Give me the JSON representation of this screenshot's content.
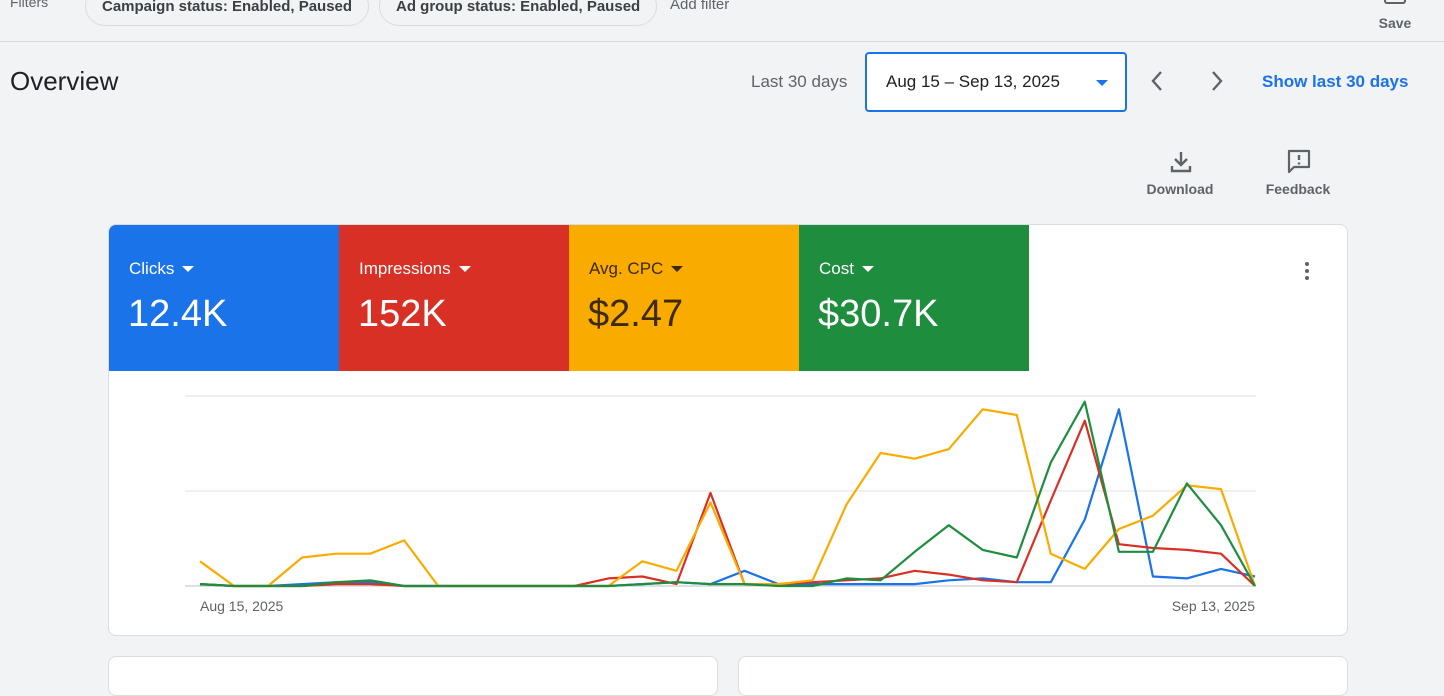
{
  "filters": {
    "label": "Filters",
    "chips": [
      "Campaign status: Enabled, Paused",
      "Ad group status: Enabled, Paused"
    ],
    "add_filter": "Add filter",
    "save_label": "Save"
  },
  "header": {
    "title": "Overview",
    "range_label": "Last 30 days",
    "date_range": "Aug 15 – Sep 13, 2025",
    "show_last": "Show last 30 days"
  },
  "tools": {
    "download_label": "Download",
    "feedback_label": "Feedback"
  },
  "metrics": [
    {
      "label": "Clicks",
      "value": "12.4K",
      "color": "#1a73e8"
    },
    {
      "label": "Impressions",
      "value": "152K",
      "color": "#d93025"
    },
    {
      "label": "Avg. CPC",
      "value": "$2.47",
      "color": "#f9ab00"
    },
    {
      "label": "Cost",
      "value": "$30.7K",
      "color": "#1e8e3e"
    }
  ],
  "chart_data": {
    "type": "line",
    "x_start_label": "Aug 15, 2025",
    "x_end_label": "Sep 13, 2025",
    "y_range": [
      0,
      100
    ],
    "grid": true,
    "series": [
      {
        "name": "Clicks",
        "color": "#1a73e8",
        "values": [
          1,
          0,
          0,
          1,
          2,
          2,
          0,
          0,
          0,
          0,
          0,
          0,
          0,
          1,
          2,
          1,
          8,
          1,
          1,
          1,
          1,
          1,
          3,
          4,
          2,
          2,
          35,
          93,
          5,
          4,
          9,
          5
        ]
      },
      {
        "name": "Impressions",
        "color": "#d93025",
        "values": [
          1,
          0,
          0,
          0,
          1,
          1,
          0,
          0,
          0,
          0,
          0,
          0,
          4,
          5,
          1,
          49,
          1,
          1,
          2,
          3,
          4,
          8,
          6,
          3,
          2,
          45,
          87,
          22,
          20,
          19,
          17,
          0
        ]
      },
      {
        "name": "Avg. CPC",
        "color": "#f9ab00",
        "values": [
          13,
          0,
          0,
          15,
          17,
          17,
          24,
          0,
          0,
          0,
          0,
          0,
          0,
          13,
          8,
          44,
          1,
          1,
          3,
          43,
          70,
          67,
          72,
          93,
          90,
          17,
          9,
          30,
          37,
          53,
          51,
          0
        ]
      },
      {
        "name": "Cost",
        "color": "#1e8e3e",
        "values": [
          1,
          0,
          0,
          0,
          2,
          3,
          0,
          0,
          0,
          0,
          0,
          0,
          0,
          1,
          2,
          1,
          1,
          0,
          0,
          4,
          3,
          18,
          32,
          19,
          15,
          65,
          97,
          18,
          18,
          54,
          32,
          0
        ]
      }
    ]
  }
}
